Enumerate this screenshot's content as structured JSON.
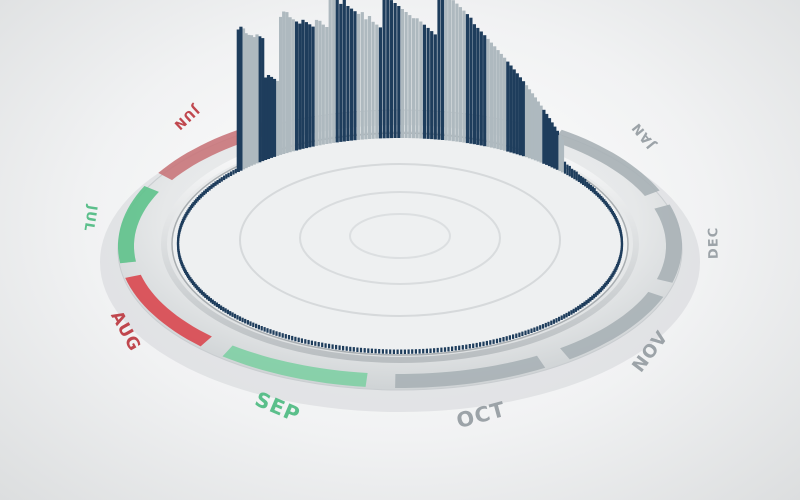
{
  "chart_data": {
    "type": "bar",
    "layout": "circular-3d",
    "title": "",
    "months": [
      {
        "label": "JAN",
        "color": "#a9b1b6"
      },
      {
        "label": "DEC",
        "color": "#a9b1b6"
      },
      {
        "label": "NOV",
        "color": "#a9b1b6"
      },
      {
        "label": "OCT",
        "color": "#a9b1b6"
      },
      {
        "label": "SEP",
        "color": "#7fcfa4"
      },
      {
        "label": "AUG",
        "color": "#d9474f"
      },
      {
        "label": "JUL",
        "color": "#5ec28b"
      },
      {
        "label": "JUN",
        "color": "#c9777b"
      }
    ],
    "series_colors": {
      "dark": "#1e3d5c",
      "light": "#aeb9bf"
    },
    "bar_order": "clockwise from JAN",
    "values": [
      8,
      7,
      7,
      6,
      6,
      6,
      5,
      5,
      5,
      5,
      4,
      4,
      4,
      4,
      4,
      3,
      3,
      3,
      3,
      3,
      3,
      3,
      3,
      3,
      3,
      3,
      3,
      3,
      3,
      3,
      3,
      3,
      3,
      3,
      3,
      3,
      3,
      3,
      3,
      3,
      3,
      3,
      3,
      3,
      3,
      3,
      3,
      3,
      3,
      3,
      3,
      3,
      3,
      3,
      3,
      3,
      3,
      3,
      3,
      3,
      3,
      3,
      3,
      3,
      3,
      3,
      3,
      3,
      3,
      3,
      3,
      3,
      3,
      3,
      3,
      3,
      3,
      3,
      3,
      3,
      3,
      3,
      3,
      3,
      3,
      3,
      3,
      3,
      3,
      3,
      3,
      3,
      3,
      3,
      3,
      3,
      3,
      3,
      3,
      3,
      3,
      3,
      3,
      3,
      3,
      3,
      3,
      3,
      3,
      3,
      3,
      3,
      3,
      3,
      3,
      3,
      3,
      3,
      3,
      3,
      3,
      3,
      3,
      3,
      3,
      3,
      3,
      3,
      3,
      3,
      3,
      3,
      3,
      3,
      3,
      3,
      3,
      3,
      3,
      3,
      3,
      3,
      3,
      3,
      3,
      3,
      3,
      3,
      3,
      3,
      3,
      3,
      3,
      3,
      3,
      3,
      3,
      3,
      3,
      3,
      3,
      3,
      3,
      3,
      3,
      3,
      3,
      3,
      3,
      3,
      3,
      3,
      3,
      3,
      3,
      3,
      3,
      3,
      3,
      3,
      3,
      3,
      3,
      3,
      3,
      3,
      3,
      3,
      3,
      3,
      3,
      3,
      3,
      3,
      3,
      3,
      3,
      3,
      3,
      3,
      3,
      3,
      3,
      3,
      3,
      3,
      3,
      3,
      3,
      3,
      3,
      3,
      3,
      3,
      3,
      3,
      3,
      3,
      3,
      3,
      3,
      3,
      3,
      3,
      3,
      3,
      3,
      3,
      3,
      3,
      3,
      3,
      3,
      3,
      3,
      3,
      3,
      3,
      3,
      3,
      3,
      3,
      3,
      3,
      3,
      3,
      3,
      3,
      3,
      3,
      3,
      3,
      3,
      3,
      3,
      3,
      3,
      3,
      3,
      3,
      3,
      3,
      3,
      3,
      3,
      3,
      3,
      3,
      3,
      3,
      3,
      3,
      3,
      3,
      3,
      3,
      3,
      3,
      3,
      3,
      95,
      96,
      94,
      90,
      88,
      87,
      85,
      86,
      84,
      82,
      55,
      56,
      54,
      52,
      50,
      92,
      95,
      94,
      90,
      88,
      86,
      84,
      86,
      84,
      82,
      80,
      84,
      83,
      80,
      78,
      100,
      98,
      96,
      92,
      95,
      90,
      88,
      86,
      84,
      85,
      80,
      82,
      78,
      76,
      74,
      96,
      94,
      92,
      90,
      88,
      86,
      84,
      82,
      80,
      80,
      78,
      76,
      74,
      72,
      70,
      98,
      100,
      102,
      96,
      94,
      92,
      90,
      88,
      86,
      84,
      80,
      78,
      76,
      74,
      72,
      70,
      68,
      66,
      64,
      62,
      60,
      58,
      56,
      54,
      52,
      50,
      48,
      46,
      44,
      42,
      40,
      38,
      36,
      34,
      32,
      30,
      28,
      26,
      24,
      22
    ]
  }
}
